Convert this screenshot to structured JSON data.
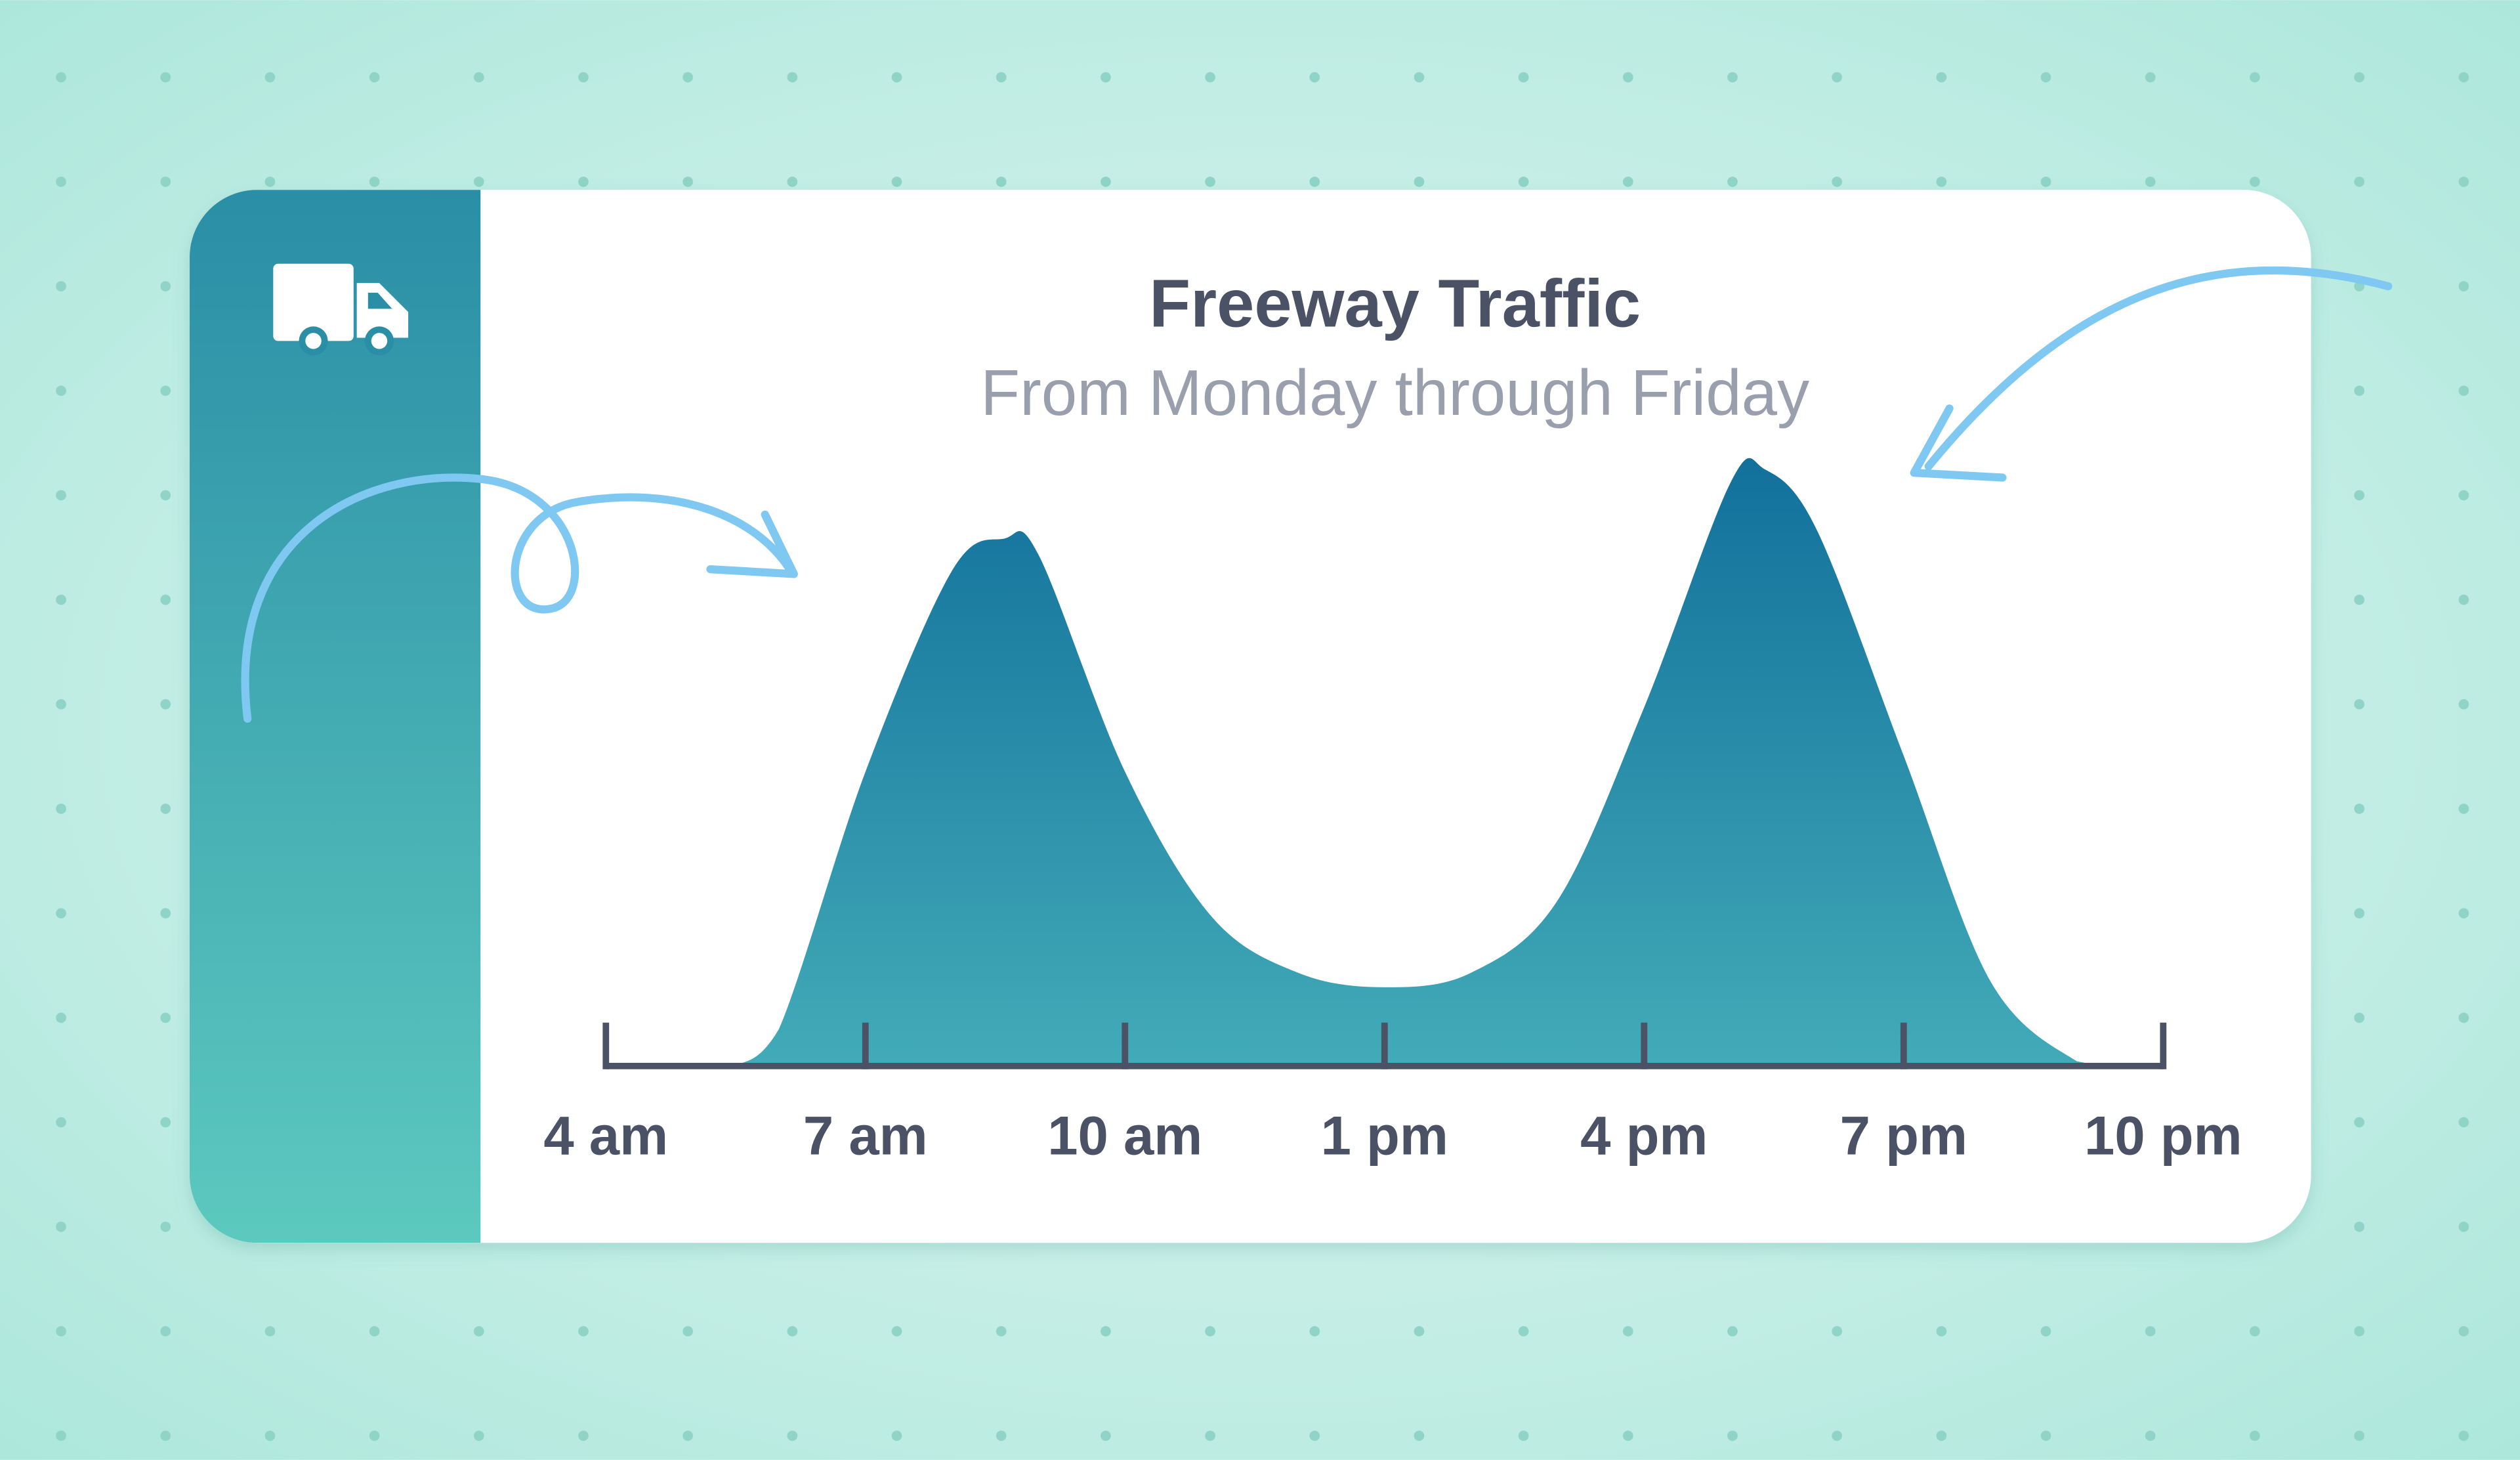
{
  "chart_data": {
    "type": "area",
    "title": "Freeway Traffic",
    "subtitle": "From Monday through Friday",
    "x": [
      5.5,
      6,
      7,
      8,
      8.6,
      9,
      10,
      11,
      12,
      13,
      14,
      15,
      16,
      17,
      17.4,
      18,
      19,
      20,
      21,
      21.5
    ],
    "values": [
      0,
      23,
      183,
      308,
      328,
      318,
      183,
      93,
      58,
      49,
      58,
      103,
      223,
      363,
      371,
      333,
      193,
      53,
      3,
      0
    ],
    "xlim": [
      4,
      22
    ],
    "xticks": [
      {
        "value": 4,
        "label": "4 am"
      },
      {
        "value": 7,
        "label": "7 am"
      },
      {
        "value": 10,
        "label": "10 am"
      },
      {
        "value": 13,
        "label": "1 pm"
      },
      {
        "value": 16,
        "label": "4 pm"
      },
      {
        "value": 19,
        "label": "7 pm"
      },
      {
        "value": 22,
        "label": "10 pm"
      }
    ],
    "color": "#167a9e"
  }
}
